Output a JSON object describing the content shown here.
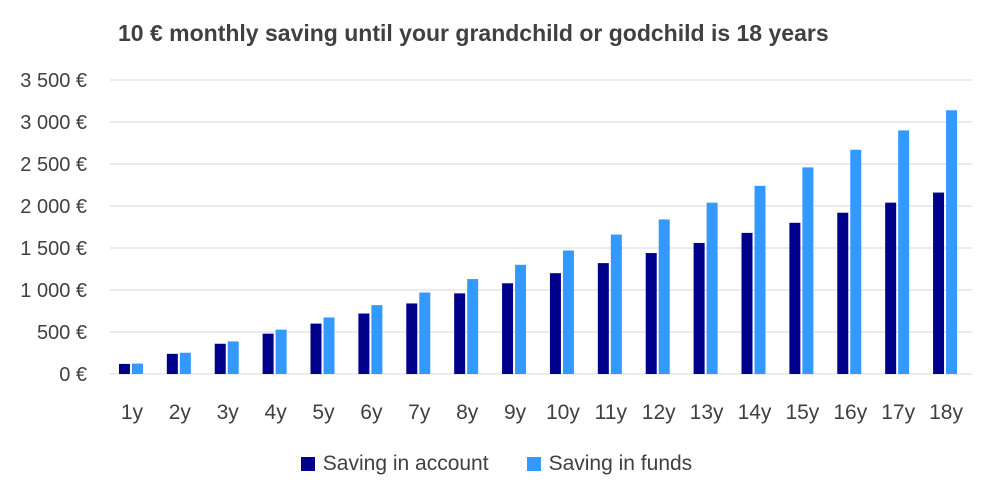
{
  "colors": {
    "account": "#00008B",
    "funds": "#3399FF",
    "grid": "#D9D9D9",
    "text": "#404040"
  },
  "chart_data": {
    "type": "bar",
    "title": "10 € monthly saving until your grandchild or godchild is 18 years",
    "xlabel": "",
    "ylabel": "",
    "ylim": [
      0,
      3500
    ],
    "yticks": [
      0,
      500,
      1000,
      1500,
      2000,
      2500,
      3000,
      3500
    ],
    "ytick_labels": [
      "0 €",
      "500 €",
      "1 000 €",
      "1 500 €",
      "2 000 €",
      "2 500 €",
      "3 000 €",
      "3 500 €"
    ],
    "grid": true,
    "legend_position": "bottom",
    "categories": [
      "1y",
      "2y",
      "3y",
      "4y",
      "5y",
      "6y",
      "7y",
      "8y",
      "9y",
      "10y",
      "11y",
      "12y",
      "13y",
      "14y",
      "15y",
      "16y",
      "17y",
      "18y"
    ],
    "series": [
      {
        "name": "Saving in account",
        "color": "#00008B",
        "values": [
          120,
          240,
          360,
          480,
          600,
          720,
          840,
          960,
          1080,
          1200,
          1320,
          1440,
          1560,
          1680,
          1800,
          1920,
          2040,
          2160
        ]
      },
      {
        "name": "Saving in funds",
        "color": "#3399FF",
        "values": [
          124,
          253,
          388,
          528,
          673,
          820,
          970,
          1130,
          1300,
          1470,
          1660,
          1840,
          2040,
          2240,
          2460,
          2670,
          2900,
          3140
        ]
      }
    ]
  }
}
